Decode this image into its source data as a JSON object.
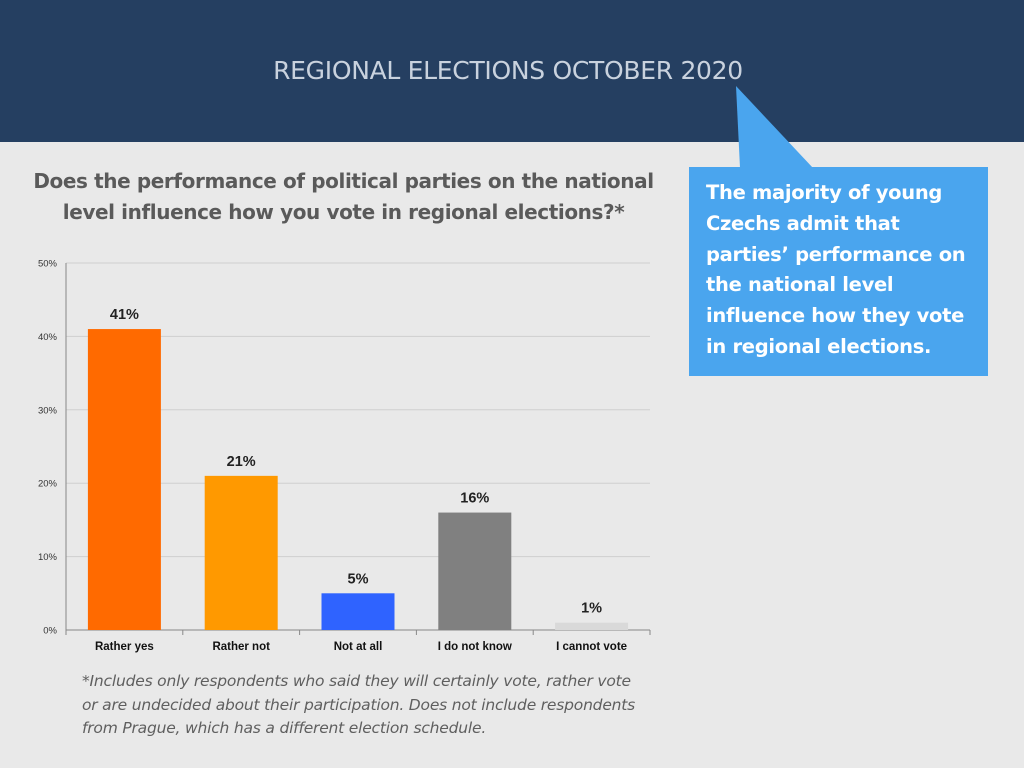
{
  "header": {
    "title": "REGIONAL ELECTIONS OCTOBER 2020"
  },
  "question": {
    "text": "Does the performance of political parties on the national level influence how you vote in regional elections?*"
  },
  "callout": {
    "text": "The majority of young Czechs admit that parties’ performance on the national level influence how they vote in regional elections."
  },
  "footnote": {
    "text": "*Includes only respondents who said they will certainly vote, rather vote or are undecided about their participation. Does not include respondents from Prague, which has a different election schedule."
  },
  "colors": {
    "header_bg": "#253f61",
    "callout_bg": "#4aa5ee"
  },
  "chart_data": {
    "type": "bar",
    "categories": [
      "Rather yes",
      "Rather not",
      "Not at all",
      "I do not know",
      "I cannot vote"
    ],
    "values": [
      41,
      21,
      5,
      16,
      1
    ],
    "value_labels": [
      "41%",
      "21%",
      "5%",
      "16%",
      "1%"
    ],
    "colors": [
      "#ff6a00",
      "#ff9900",
      "#2f63ff",
      "#808080",
      "#d9d9d9"
    ],
    "yticks": [
      "0%",
      "10%",
      "20%",
      "30%",
      "40%",
      "50%"
    ],
    "ylim": [
      0,
      50
    ],
    "grid": true
  }
}
